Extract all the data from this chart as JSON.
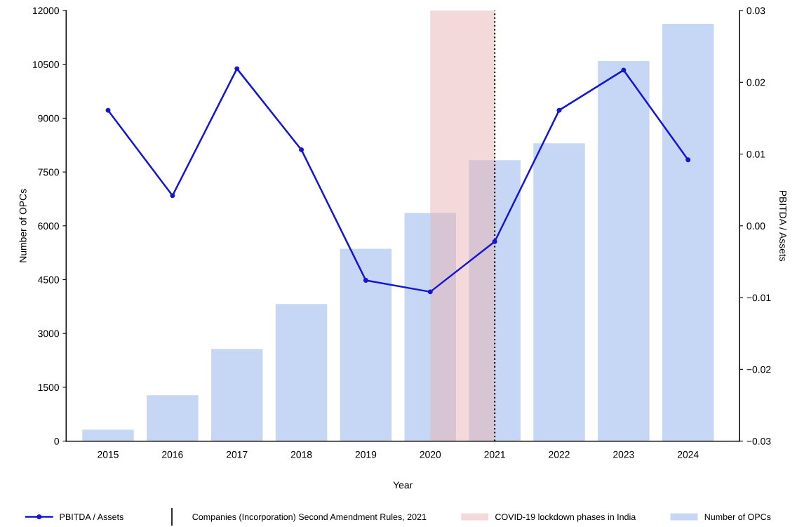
{
  "chart_data": {
    "type": "bar",
    "xlabel": "Year",
    "ylabel": "Number of OPCs",
    "y2label": "PBITDA / Assets",
    "categories": [
      "2015",
      "2016",
      "2017",
      "2018",
      "2019",
      "2020",
      "2021",
      "2022",
      "2023",
      "2024"
    ],
    "series": [
      {
        "name": "Number of OPCs",
        "color": "#c6d7f5",
        "values": [
          320,
          1280,
          2570,
          3820,
          5360,
          6360,
          7830,
          8300,
          10590,
          11630
        ]
      },
      {
        "name": "PBITDA / Assets",
        "type": "line",
        "axis": "y2",
        "color": "#1515d6",
        "marker": "circle",
        "values": [
          0.0161,
          0.0042,
          0.0219,
          0.0106,
          -0.0076,
          -0.0092,
          -0.0022,
          0.0161,
          0.0217,
          0.0092
        ]
      }
    ],
    "ylim": [
      0,
      12000
    ],
    "yticks": [
      0,
      1500,
      3000,
      4500,
      6000,
      7500,
      9000,
      10500,
      12000
    ],
    "y2lim": [
      -0.03,
      0.03
    ],
    "y2ticks": [
      {
        "value": -0.03,
        "label": "−0.03"
      },
      {
        "value": -0.02,
        "label": "−0.02"
      },
      {
        "value": -0.01,
        "label": "−0.01"
      },
      {
        "value": 0,
        "label": "0.00"
      },
      {
        "value": 0.01,
        "label": "0.01"
      },
      {
        "value": 0.02,
        "label": "0.02"
      },
      {
        "value": 0.03,
        "label": "0.03"
      }
    ],
    "ref_lines": [
      {
        "axis": "x",
        "value": "2021",
        "label": "Companies (Incorporation) Second Amendment Rules, 2021",
        "color": "#000000",
        "line_style": "dotted"
      }
    ],
    "bands": [
      {
        "axis": "x",
        "from": "2020",
        "to": "2021",
        "label": "COVID-19 lockdown phases in India",
        "color": "#e8b4b4"
      }
    ],
    "legend": "bottom",
    "grid": false
  }
}
